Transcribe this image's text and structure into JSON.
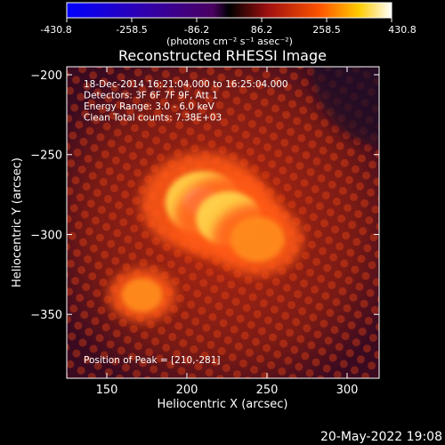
{
  "chart_data": {
    "type": "heatmap",
    "title": "Reconstructed RHESSI Image",
    "xlabel": "Heliocentric X (arcsec)",
    "ylabel": "Heliocentric Y (arcsec)",
    "xlim": [
      125,
      320
    ],
    "ylim": [
      -390,
      -195
    ],
    "xticks": [
      150,
      200,
      250,
      300
    ],
    "yticks": [
      -200,
      -250,
      -300,
      -350
    ],
    "colorbar": {
      "ticks": [
        "-430.8",
        "-258.5",
        "-86.2",
        "86.2",
        "258.5",
        "430.8"
      ],
      "range": [
        -430.8,
        430.8
      ],
      "unit": "(photons cm⁻² s⁻¹ asec⁻²)",
      "colormap": "blue-black-red-yellow-white"
    },
    "annotations": [
      "18-Dec-2014 16:21:04.000 to 16:25:04.000",
      "Detectors: 3F 6F 7F 9F, Att 1",
      "Energy Range: 3.0 - 6.0 keV",
      "Clean    Total counts: 7.38E+03"
    ],
    "peak_label": "Position of Peak = [210,-281]",
    "peak": [
      210,
      -281
    ],
    "sources": [
      {
        "x": 210,
        "y": -280,
        "level": 1.0
      },
      {
        "x": 226,
        "y": -290,
        "level": 0.78
      },
      {
        "x": 244,
        "y": -303,
        "level": 0.55
      },
      {
        "x": 172,
        "y": -338,
        "level": 0.25
      }
    ]
  },
  "timestamp": "20-May-2022 19:08",
  "colors": {
    "background": "#000000",
    "foreground": "#ffffff",
    "hot": "#ffd24a",
    "mid": "#d42a10",
    "cold": "#1a0024"
  }
}
